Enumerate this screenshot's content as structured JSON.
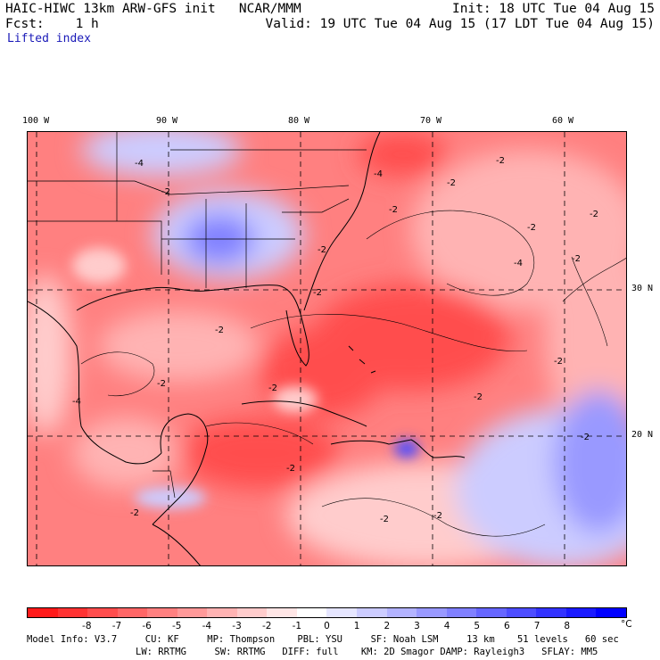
{
  "header": {
    "line1_left": "HAIC-HIWC 13km ARW-GFS init   NCAR/MMM",
    "line1_right": "Init: 18 UTC Tue 04 Aug 15",
    "line2_left": "Fcst:    1 h",
    "line2_right": "Valid: 19 UTC Tue 04 Aug 15 (17 LDT Tue 04 Aug 15)",
    "variable": "Lifted index"
  },
  "map": {
    "lon_labels": [
      "100 W",
      "90 W",
      "80 W",
      "70 W",
      "60 W"
    ],
    "lat_labels": [
      "30 N",
      "20 N"
    ],
    "contour_labels": [
      "-4",
      "-2",
      "-4",
      "-2",
      "-2",
      "-2",
      "-2",
      "-4",
      "-2",
      "-2",
      "-2",
      "-2",
      "-2",
      "-2",
      "-2",
      "-4",
      "-2",
      "-2",
      "-2",
      "-2",
      "-2",
      "-2",
      "-2"
    ]
  },
  "colorbar": {
    "colors": [
      "#ff1a1a",
      "#ff3333",
      "#ff4d4d",
      "#ff6666",
      "#ff8080",
      "#ff9999",
      "#ffb3b3",
      "#ffcccc",
      "#ffe6e6",
      "#ffffff",
      "#e6e6ff",
      "#ccccff",
      "#b3b3ff",
      "#9999ff",
      "#8080ff",
      "#6666ff",
      "#4d4dff",
      "#3333ff",
      "#1a1aff",
      "#0000ff"
    ],
    "ticks": [
      "-8",
      "-7",
      "-6",
      "-5",
      "-4",
      "-3",
      "-2",
      "-1",
      "0",
      "1",
      "2",
      "3",
      "4",
      "5",
      "6",
      "7",
      "8"
    ],
    "unit": "°C"
  },
  "footer": {
    "line1": "Model Info: V3.7     CU: KF     MP: Thompson    PBL: YSU     SF: Noah LSM     13 km    51 levels   60 sec",
    "line2": "LW: RRTMG     SW: RRTMG   DIFF: full    KM: 2D Smagor DAMP: Rayleigh3   SFLAY: MM5"
  }
}
